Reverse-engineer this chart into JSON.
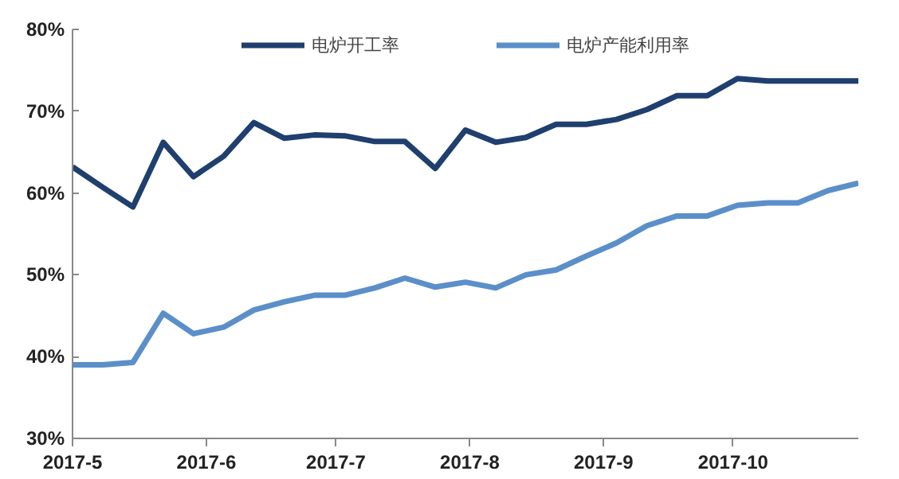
{
  "chart_data": {
    "type": "line",
    "x": [
      "2017-05-01",
      "2017-05-08",
      "2017-05-15",
      "2017-05-22",
      "2017-05-29",
      "2017-06-05",
      "2017-06-12",
      "2017-06-19",
      "2017-06-26",
      "2017-07-03",
      "2017-07-10",
      "2017-07-17",
      "2017-07-24",
      "2017-07-31",
      "2017-08-07",
      "2017-08-14",
      "2017-08-21",
      "2017-08-28",
      "2017-09-04",
      "2017-09-11",
      "2017-09-18",
      "2017-09-25",
      "2017-10-02",
      "2017-10-09",
      "2017-10-16",
      "2017-10-23",
      "2017-10-30"
    ],
    "series": [
      {
        "name": "电炉开工率",
        "color": "#1f3f6e",
        "values": [
          63.2,
          60.7,
          58.3,
          66.2,
          62.0,
          64.5,
          68.6,
          66.7,
          67.1,
          67.0,
          66.3,
          66.3,
          63.0,
          67.7,
          66.2,
          66.8,
          68.4,
          68.4,
          69.0,
          70.2,
          71.9,
          71.9,
          74.0,
          73.7,
          73.7,
          73.7,
          73.7
        ]
      },
      {
        "name": "电炉产能利用率",
        "color": "#5b8fc9",
        "values": [
          39.0,
          39.0,
          39.3,
          45.3,
          42.8,
          43.6,
          45.7,
          46.7,
          47.5,
          47.5,
          48.4,
          49.6,
          48.5,
          49.1,
          48.4,
          50.0,
          50.6,
          52.3,
          53.9,
          56.0,
          57.2,
          57.2,
          58.5,
          58.8,
          58.8,
          60.3,
          61.2
        ]
      }
    ],
    "xlim": [
      "2017-05-01",
      "2017-10-30"
    ],
    "xticks": [
      {
        "value": "2017-05-01",
        "label": "2017-5"
      },
      {
        "value": "2017-06-01",
        "label": "2017-6"
      },
      {
        "value": "2017-07-01",
        "label": "2017-7"
      },
      {
        "value": "2017-08-01",
        "label": "2017-8"
      },
      {
        "value": "2017-09-01",
        "label": "2017-9"
      },
      {
        "value": "2017-10-01",
        "label": "2017-10"
      }
    ],
    "ylim": [
      30,
      80
    ],
    "yticks": [
      {
        "value": 30,
        "label": "30%"
      },
      {
        "value": 40,
        "label": "40%"
      },
      {
        "value": 50,
        "label": "50%"
      },
      {
        "value": 60,
        "label": "60%"
      },
      {
        "value": 70,
        "label": "70%"
      },
      {
        "value": 80,
        "label": "80%"
      }
    ],
    "grid": false,
    "legend": "top",
    "marker": "none",
    "line_style": "solid"
  }
}
